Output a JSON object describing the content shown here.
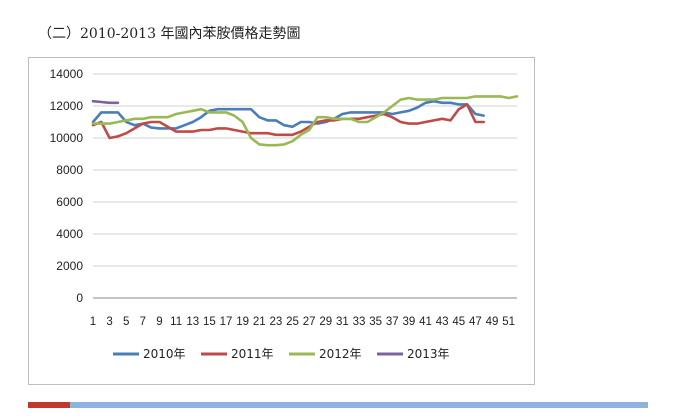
{
  "page": {
    "title": "（二）2010-2013 年國內苯胺價格走勢圖"
  },
  "colors": {
    "footer_red": "#c0392b",
    "footer_blue": "#8fb3dc",
    "grid": "#d0d0d0"
  },
  "chart_data": {
    "type": "line",
    "title": "",
    "xlabel": "",
    "ylabel": "",
    "ylim": [
      0,
      14000
    ],
    "xlim": [
      1,
      52
    ],
    "yticks": [
      0,
      2000,
      4000,
      6000,
      8000,
      10000,
      12000,
      14000
    ],
    "xticks": [
      "1",
      "3",
      "5",
      "7",
      "9",
      "11",
      "13",
      "15",
      "17",
      "19",
      "21",
      "23",
      "25",
      "27",
      "29",
      "31",
      "33",
      "35",
      "37",
      "39",
      "41",
      "43",
      "45",
      "47",
      "49",
      "51"
    ],
    "grid": "horizontal",
    "legend": "bottom",
    "series": [
      {
        "name": "2010年",
        "color": "#4a7ebb",
        "x": [
          1,
          2,
          3,
          4,
          5,
          6,
          7,
          8,
          9,
          10,
          11,
          12,
          13,
          14,
          15,
          16,
          17,
          18,
          19,
          20,
          21,
          22,
          23,
          24,
          25,
          26,
          27,
          28,
          29,
          30,
          31,
          32,
          33,
          34,
          35,
          36,
          37,
          38,
          39,
          40,
          41,
          42,
          43,
          44,
          45,
          46,
          47,
          48
        ],
        "values": [
          11000,
          11600,
          11600,
          11600,
          11000,
          10800,
          10900,
          10650,
          10600,
          10600,
          10600,
          10800,
          11000,
          11300,
          11700,
          11800,
          11800,
          11800,
          11800,
          11800,
          11300,
          11100,
          11100,
          10800,
          10700,
          11000,
          11000,
          10900,
          11000,
          11200,
          11500,
          11600,
          11600,
          11600,
          11600,
          11600,
          11500,
          11600,
          11700,
          11900,
          12200,
          12300,
          12200,
          12200,
          12100,
          12100,
          11500,
          11400
        ]
      },
      {
        "name": "2011年",
        "color": "#be4b48",
        "x": [
          1,
          2,
          3,
          4,
          5,
          6,
          7,
          8,
          9,
          10,
          11,
          12,
          13,
          14,
          15,
          16,
          17,
          18,
          19,
          20,
          21,
          22,
          23,
          24,
          25,
          26,
          27,
          28,
          29,
          30,
          31,
          32,
          33,
          34,
          35,
          36,
          37,
          38,
          39,
          40,
          41,
          42,
          43,
          44,
          45,
          46,
          47,
          48
        ],
        "values": [
          10800,
          11000,
          10000,
          10100,
          10300,
          10600,
          10900,
          11000,
          11000,
          10700,
          10400,
          10400,
          10400,
          10500,
          10500,
          10600,
          10600,
          10500,
          10400,
          10300,
          10300,
          10300,
          10200,
          10200,
          10200,
          10400,
          10700,
          11000,
          11100,
          11100,
          11200,
          11200,
          11200,
          11300,
          11400,
          11500,
          11300,
          11000,
          10900,
          10900,
          11000,
          11100,
          11200,
          11100,
          11800,
          12100,
          11000,
          11000
        ]
      },
      {
        "name": "2012年",
        "color": "#98b954",
        "x": [
          1,
          2,
          3,
          4,
          5,
          6,
          7,
          8,
          9,
          10,
          11,
          12,
          13,
          14,
          15,
          16,
          17,
          18,
          19,
          20,
          21,
          22,
          23,
          24,
          25,
          26,
          27,
          28,
          29,
          30,
          31,
          32,
          33,
          34,
          35,
          36,
          37,
          38,
          39,
          40,
          41,
          42,
          43,
          44,
          45,
          46,
          47,
          48,
          49,
          50,
          51,
          52
        ],
        "values": [
          10900,
          10900,
          10900,
          11000,
          11100,
          11200,
          11200,
          11300,
          11300,
          11300,
          11500,
          11600,
          11700,
          11800,
          11600,
          11600,
          11600,
          11400,
          11000,
          10000,
          9600,
          9550,
          9550,
          9600,
          9800,
          10200,
          10500,
          11300,
          11300,
          11200,
          11200,
          11200,
          11000,
          11000,
          11300,
          11600,
          12000,
          12400,
          12500,
          12400,
          12400,
          12400,
          12500,
          12500,
          12500,
          12500,
          12600,
          12600,
          12600,
          12600,
          12500,
          12600
        ]
      },
      {
        "name": "2013年",
        "color": "#7d60a0",
        "x": [
          1,
          2,
          3,
          4
        ],
        "values": [
          12300,
          12250,
          12200,
          12200
        ]
      }
    ]
  }
}
